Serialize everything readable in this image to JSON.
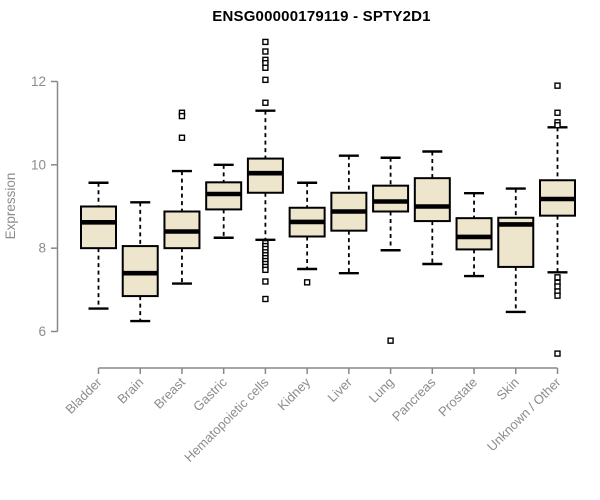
{
  "title": "ENSG00000179119 - SPTY2D1",
  "colors": {
    "background": "#ffffff",
    "box_fill": "#ede6cc",
    "box_border": "#000000",
    "median_color": "#000000",
    "whisker_color": "#000000",
    "outlier_fill": "#ffffff",
    "axis_line_color": "#888888",
    "axis_text_color": "#8c8c8c",
    "title_color": "#000000"
  },
  "chart_data": {
    "type": "boxplot",
    "title": "ENSG00000179119 - SPTY2D1",
    "xlabel": "",
    "ylabel": "Expression",
    "ylim": [
      5.4,
      13.1
    ],
    "yticks": [
      6,
      8,
      10,
      12
    ],
    "grid": false,
    "legend": null,
    "categories": [
      "Bladder",
      "Brain",
      "Breast",
      "Gastric",
      "Hematopoietic cells",
      "Kidney",
      "Liver",
      "Lung",
      "Pancreas",
      "Prostate",
      "Skin",
      "Unknown / Other"
    ],
    "series": [
      {
        "category": "Bladder",
        "whisker_low": 6.55,
        "q1": 8.0,
        "median": 8.62,
        "q3": 9.0,
        "whisker_high": 9.57,
        "outliers": []
      },
      {
        "category": "Brain",
        "whisker_low": 6.25,
        "q1": 6.85,
        "median": 7.4,
        "q3": 8.05,
        "whisker_high": 9.1,
        "outliers": []
      },
      {
        "category": "Breast",
        "whisker_low": 7.15,
        "q1": 8.0,
        "median": 8.4,
        "q3": 8.88,
        "whisker_high": 9.85,
        "outliers": [
          11.25,
          11.17,
          10.65
        ]
      },
      {
        "category": "Gastric",
        "whisker_low": 8.25,
        "q1": 8.93,
        "median": 9.3,
        "q3": 9.58,
        "whisker_high": 10.0,
        "outliers": []
      },
      {
        "category": "Hematopoietic cells",
        "whisker_low": 8.2,
        "q1": 9.33,
        "median": 9.8,
        "q3": 10.15,
        "whisker_high": 11.3,
        "outliers": [
          12.95,
          12.72,
          12.52,
          12.44,
          12.33,
          12.04,
          11.49,
          8.12,
          8.05,
          7.98,
          7.9,
          7.83,
          7.76,
          7.69,
          7.62,
          7.55,
          7.48,
          7.2,
          6.78
        ]
      },
      {
        "category": "Kidney",
        "whisker_low": 7.5,
        "q1": 8.28,
        "median": 8.63,
        "q3": 8.97,
        "whisker_high": 9.57,
        "outliers": [
          7.18
        ]
      },
      {
        "category": "Liver",
        "whisker_low": 7.4,
        "q1": 8.42,
        "median": 8.88,
        "q3": 9.33,
        "whisker_high": 10.22,
        "outliers": []
      },
      {
        "category": "Lung",
        "whisker_low": 7.95,
        "q1": 8.88,
        "median": 9.12,
        "q3": 9.5,
        "whisker_high": 10.17,
        "outliers": [
          5.78
        ]
      },
      {
        "category": "Pancreas",
        "whisker_low": 7.62,
        "q1": 8.65,
        "median": 9.0,
        "q3": 9.68,
        "whisker_high": 10.32,
        "outliers": []
      },
      {
        "category": "Prostate",
        "whisker_low": 7.33,
        "q1": 7.97,
        "median": 8.27,
        "q3": 8.72,
        "whisker_high": 9.32,
        "outliers": []
      },
      {
        "category": "Skin",
        "whisker_low": 6.47,
        "q1": 7.55,
        "median": 8.57,
        "q3": 8.73,
        "whisker_high": 9.43,
        "outliers": []
      },
      {
        "category": "Unknown / Other",
        "whisker_low": 7.42,
        "q1": 8.78,
        "median": 9.18,
        "q3": 9.63,
        "whisker_high": 10.9,
        "outliers": [
          11.9,
          11.25,
          11.02,
          10.95,
          7.3,
          7.17,
          7.08,
          6.96,
          6.86,
          5.47
        ]
      }
    ]
  }
}
